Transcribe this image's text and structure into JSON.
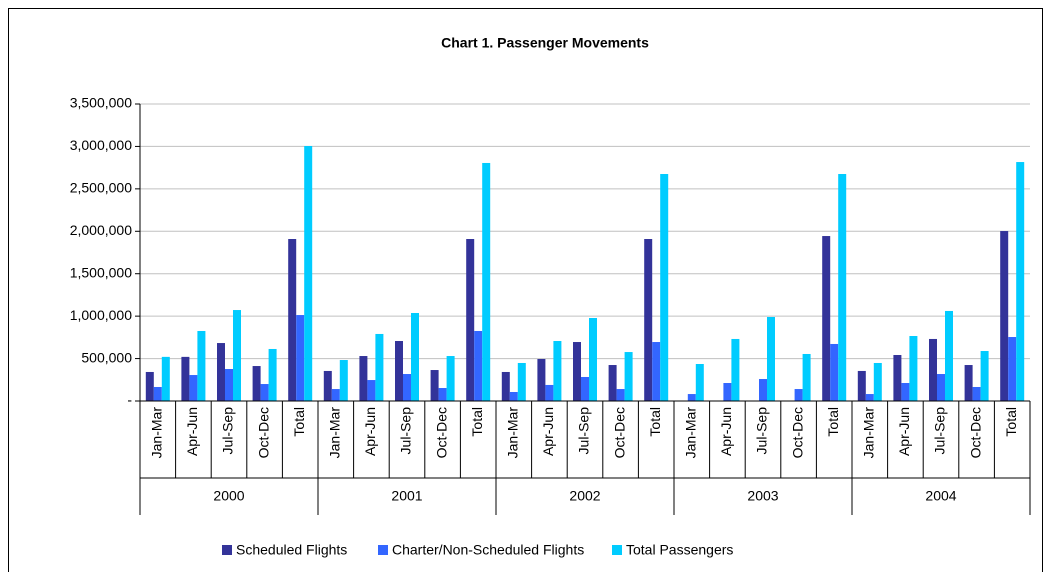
{
  "chart_data": {
    "type": "bar",
    "title": "Chart 1.  Passenger Movements",
    "categories": [
      "Jan-Mar",
      "Apr-Jun",
      "Jul-Sep",
      "Oct-Dec",
      "Total",
      "Jan-Mar",
      "Apr-Jun",
      "Jul-Sep",
      "Oct-Dec",
      "Total",
      "Jan-Mar",
      "Apr-Jun",
      "Jul-Sep",
      "Oct-Dec",
      "Total",
      "Jan-Mar",
      "Apr-Jun",
      "Jul-Sep",
      "Oct-Dec",
      "Total",
      "Jan-Mar",
      "Apr-Jun",
      "Jul-Sep",
      "Oct-Dec",
      "Total"
    ],
    "category_groups": [
      "2000",
      "2001",
      "2002",
      "2003",
      "2004"
    ],
    "series": [
      {
        "name": "Scheduled Flights",
        "color": "#333399",
        "values": [
          342000,
          520000,
          683000,
          412000,
          1909000,
          354000,
          530000,
          707000,
          365000,
          1909000,
          342000,
          495000,
          695000,
          424000,
          1909000,
          null,
          null,
          null,
          null,
          1944000,
          354000,
          542000,
          731000,
          424000,
          2003000
        ]
      },
      {
        "name": "Charter/Non-Scheduled Flights",
        "color": "#3366ff",
        "values": [
          165000,
          306000,
          377000,
          200000,
          1013000,
          141000,
          247000,
          318000,
          153000,
          825000,
          106000,
          189000,
          283000,
          141000,
          695000,
          82000,
          212000,
          259000,
          141000,
          672000,
          82000,
          212000,
          318000,
          165000,
          754000
        ]
      },
      {
        "name": "Total Passengers",
        "color": "#00ccff",
        "values": [
          520000,
          825000,
          1072000,
          613000,
          3005000,
          483000,
          790000,
          1037000,
          530000,
          2805000,
          448000,
          707000,
          978000,
          577000,
          2675000,
          436000,
          731000,
          990000,
          554000,
          2675000,
          448000,
          766000,
          1061000,
          589000,
          2816000
        ]
      }
    ],
    "ylim": [
      0,
      3500000
    ],
    "yticks": [
      {
        "value": 0,
        "label": "-"
      },
      {
        "value": 500000,
        "label": "500,000"
      },
      {
        "value": 1000000,
        "label": "1,000,000"
      },
      {
        "value": 1500000,
        "label": "1,500,000"
      },
      {
        "value": 2000000,
        "label": "2,000,000"
      },
      {
        "value": 2500000,
        "label": "2,500,000"
      },
      {
        "value": 3000000,
        "label": "3,000,000"
      },
      {
        "value": 3500000,
        "label": "3,500,000"
      }
    ],
    "grid": true,
    "legend": "bottom"
  }
}
